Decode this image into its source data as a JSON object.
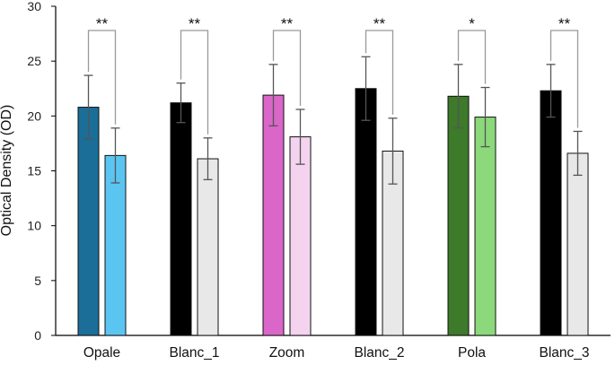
{
  "chart_data": {
    "type": "bar",
    "ylabel": "Optical Density (OD)",
    "xlabel": "",
    "ylim": [
      0,
      30
    ],
    "yticks": [
      0,
      5,
      10,
      15,
      20,
      25,
      30
    ],
    "grid": false,
    "legend": "none",
    "categories": [
      "Opale",
      "Blanc_1",
      "Zoom",
      "Blanc_2",
      "Pola",
      "Blanc_3"
    ],
    "series": [
      {
        "values": [
          20.8,
          21.2,
          21.9,
          22.5,
          21.8,
          22.3
        ],
        "errors": [
          2.9,
          1.8,
          2.8,
          2.9,
          2.9,
          2.4
        ],
        "colors": [
          "#1a6e98",
          "#000000",
          "#d966c8",
          "#000000",
          "#3d7a2a",
          "#000000"
        ]
      },
      {
        "values": [
          16.4,
          16.1,
          18.1,
          16.8,
          19.9,
          16.6
        ],
        "errors": [
          2.5,
          1.9,
          2.5,
          3.0,
          2.7,
          2.0
        ],
        "colors": [
          "#5bc5f2",
          "#e8e8e8",
          "#f4d3ef",
          "#e8e8e8",
          "#8bd97a",
          "#e8e8e8"
        ]
      }
    ],
    "significance": [
      "**",
      "**",
      "**",
      "**",
      "*",
      "**"
    ]
  }
}
